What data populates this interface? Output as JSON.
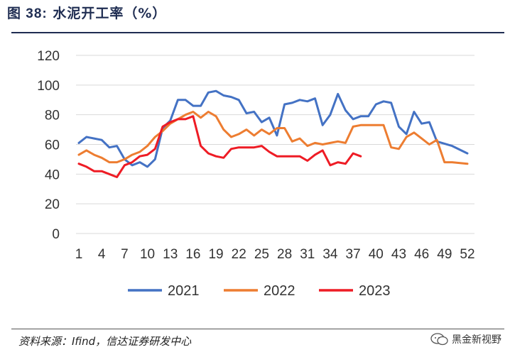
{
  "title": {
    "prefix": "图 38:",
    "text": "水泥开工率（%）"
  },
  "source": "资料来源：Ifind，信达证券研发中心",
  "watermark": "黑金新视野",
  "chart_data": {
    "type": "line",
    "title": "水泥开工率（%）",
    "ylim": [
      0,
      120
    ],
    "yticks": [
      0,
      20,
      40,
      60,
      80,
      100,
      120
    ],
    "xlim": [
      1,
      52
    ],
    "xticks": [
      1,
      4,
      7,
      10,
      13,
      16,
      19,
      22,
      25,
      28,
      31,
      34,
      37,
      40,
      43,
      46,
      49,
      52
    ],
    "legend_position": "bottom",
    "grid": "horizontal",
    "series": [
      {
        "name": "2021",
        "color": "#4472c4",
        "x": [
          1,
          2,
          3,
          4,
          5,
          6,
          7,
          8,
          9,
          10,
          11,
          12,
          13,
          14,
          15,
          16,
          17,
          18,
          19,
          20,
          21,
          22,
          23,
          24,
          25,
          26,
          27,
          28,
          29,
          30,
          31,
          32,
          33,
          34,
          35,
          36,
          37,
          38,
          39,
          40,
          41,
          42,
          43,
          44,
          45,
          46,
          47,
          48,
          50,
          52
        ],
        "y": [
          61,
          65,
          64,
          63,
          58,
          59,
          50,
          46,
          48,
          45,
          50,
          71,
          76,
          90,
          90,
          86,
          86,
          95,
          96,
          93,
          92,
          90,
          81,
          82,
          75,
          78,
          66,
          87,
          88,
          90,
          89,
          91,
          73,
          80,
          94,
          83,
          77,
          79,
          79,
          87,
          89,
          88,
          72,
          67,
          82,
          74,
          75,
          62,
          59,
          54
        ]
      },
      {
        "name": "2022",
        "color": "#ed7d31",
        "x": [
          1,
          2,
          3,
          4,
          5,
          6,
          7,
          8,
          9,
          10,
          11,
          12,
          13,
          14,
          15,
          16,
          17,
          18,
          19,
          20,
          21,
          22,
          23,
          24,
          25,
          26,
          27,
          28,
          29,
          30,
          31,
          32,
          33,
          34,
          35,
          36,
          37,
          38,
          39,
          40,
          41,
          42,
          43,
          44,
          45,
          46,
          47,
          48,
          49,
          50,
          52
        ],
        "y": [
          53,
          56,
          53,
          51,
          48,
          48,
          50,
          53,
          55,
          59,
          65,
          69,
          74,
          77,
          80,
          82,
          78,
          82,
          79,
          70,
          65,
          67,
          70,
          66,
          70,
          67,
          71,
          71,
          62,
          64,
          59,
          61,
          60,
          61,
          62,
          61,
          72,
          73,
          73,
          73,
          73,
          58,
          57,
          65,
          68,
          64,
          60,
          63,
          48,
          48,
          47
        ]
      },
      {
        "name": "2023",
        "color": "#ee1c25",
        "x": [
          1,
          2,
          3,
          4,
          5,
          6,
          7,
          8,
          9,
          10,
          11,
          12,
          13,
          14,
          15,
          16,
          17,
          18,
          19,
          20,
          21,
          22,
          23,
          24,
          25,
          26,
          27,
          28,
          29,
          30,
          31,
          32,
          33,
          34,
          35,
          36,
          37,
          38
        ],
        "y": [
          47,
          45,
          42,
          42,
          40,
          38,
          46,
          48,
          52,
          53,
          57,
          72,
          75,
          77,
          77,
          79,
          59,
          54,
          52,
          51,
          57,
          58,
          58,
          58,
          59,
          55,
          52,
          52,
          52,
          52,
          49,
          53,
          56,
          46,
          48,
          47,
          54,
          52
        ]
      }
    ]
  }
}
